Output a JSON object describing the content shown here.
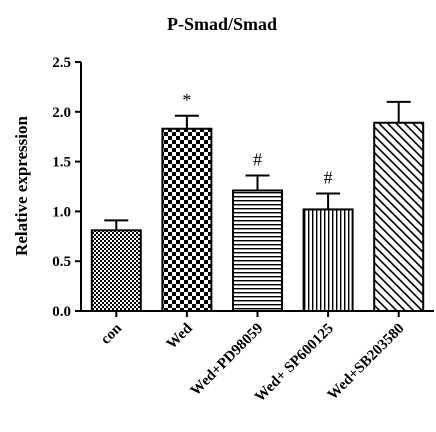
{
  "chart_data": {
    "type": "bar",
    "title": "P-Smad/Smad",
    "xlabel": "",
    "ylabel": "Relative expression",
    "ylim": [
      0,
      2.5
    ],
    "yticks": [
      "0.0",
      "0.5",
      "1.0",
      "1.5",
      "2.0",
      "2.5"
    ],
    "categories": [
      "con",
      "Wed",
      "Wed+PD98059",
      "Wed+ SP600125",
      "Wed+SB203580"
    ],
    "values": [
      0.81,
      1.83,
      1.21,
      1.02,
      1.89
    ],
    "errors": [
      0.1,
      0.13,
      0.15,
      0.16,
      0.21
    ],
    "annotations": [
      "",
      "*",
      "#",
      "#",
      ""
    ],
    "patterns": [
      "fine-checker",
      "checkerboard",
      "horizontal-lines",
      "vertical-lines",
      "diagonal-lines"
    ],
    "grid": false,
    "legend": "none"
  }
}
